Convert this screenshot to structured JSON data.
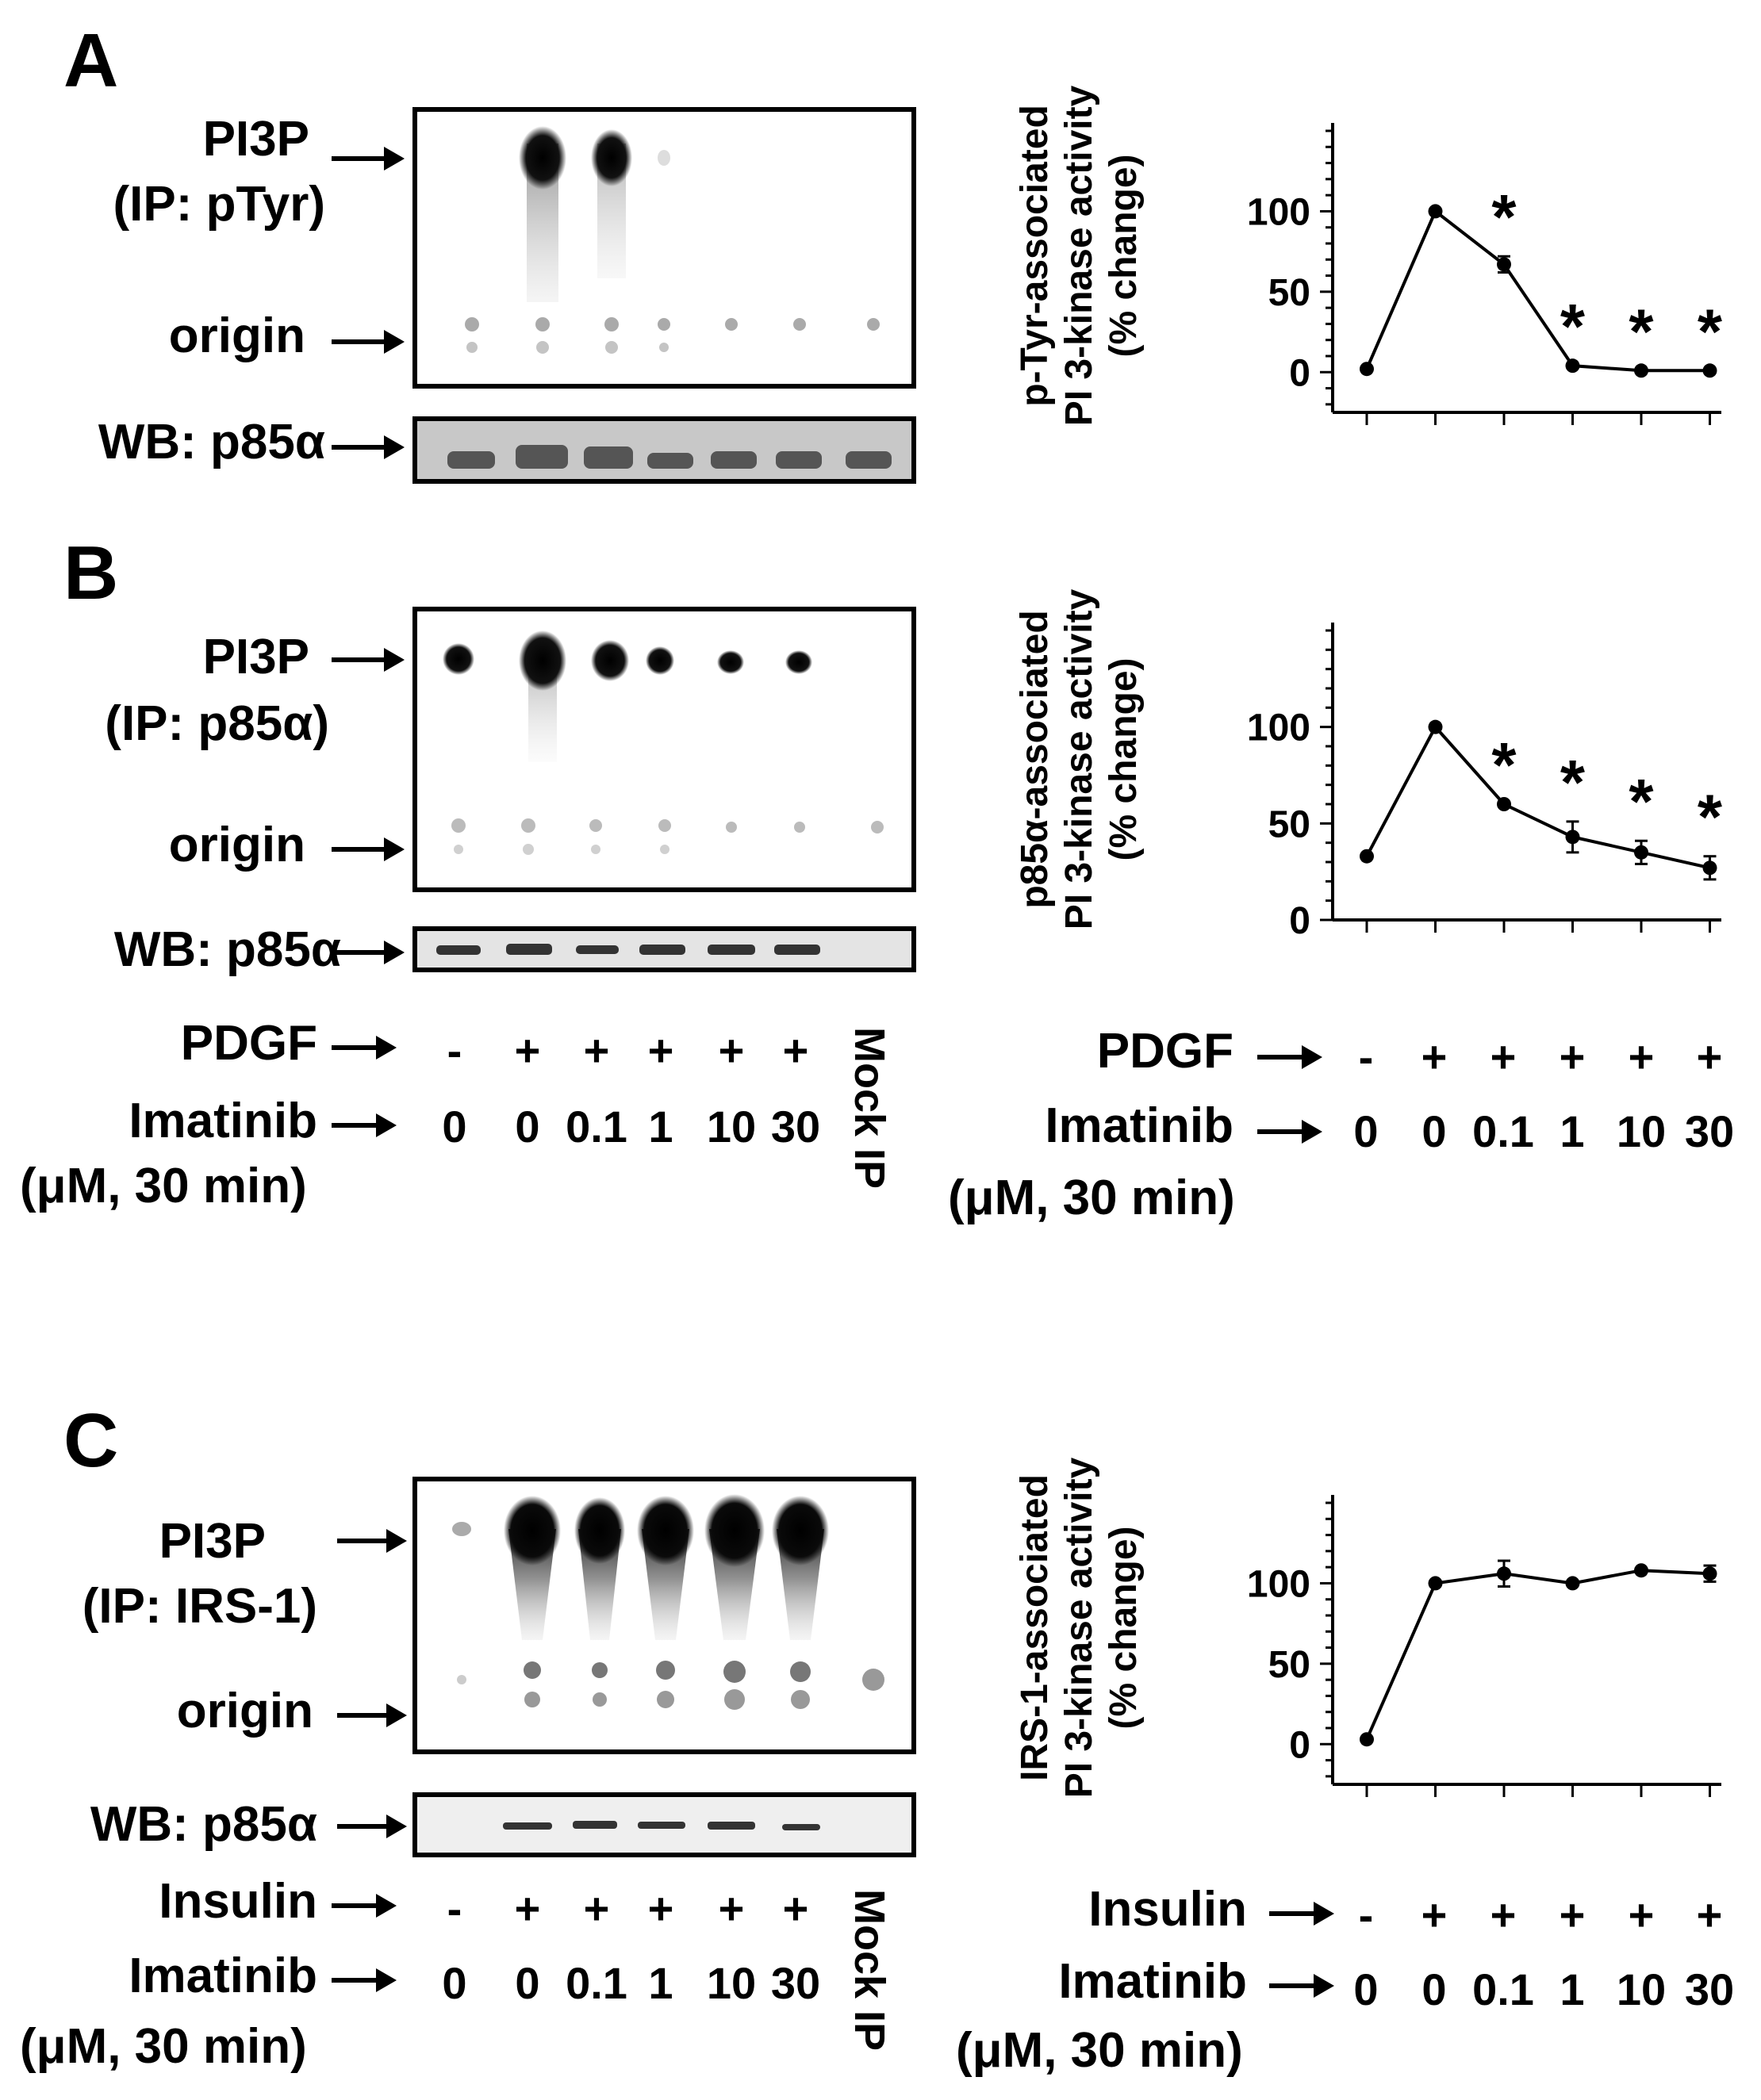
{
  "panels": {
    "A": {
      "letter": "A",
      "blot_label_1": "PI3P",
      "blot_label_2": "(IP: pTyr)",
      "origin_label": "origin",
      "wb_label": "WB: p85α"
    },
    "B": {
      "letter": "B",
      "blot_label_1": "PI3P",
      "blot_label_2": "(IP: p85α)",
      "origin_label": "origin",
      "wb_label": "WB: p85α",
      "stim_label": "PDGF",
      "imatinib_label": "Imatinib",
      "unit_label": "(μM, 30 min)",
      "mock_label": "Mock IP"
    },
    "C": {
      "letter": "C",
      "blot_label_1": "PI3P",
      "blot_label_2": "(IP: IRS-1)",
      "origin_label": "origin",
      "wb_label": "WB: p85α",
      "stim_label": "Insulin",
      "imatinib_label": "Imatinib",
      "unit_label": "(μM, 30 min)",
      "mock_label": "Mock IP"
    }
  },
  "conditions": {
    "stim_signs": [
      "-",
      "+",
      "+",
      "+",
      "+",
      "+"
    ],
    "imatinib_doses": [
      "0",
      "0",
      "0.1",
      "1",
      "10",
      "30"
    ]
  },
  "colors": {
    "ink": "#000000",
    "wb_bg": "#e4e4e4",
    "wb_bg_light": "#efefef"
  },
  "chart_data": [
    {
      "type": "line",
      "panel": "A",
      "ylabel_line1": "p-Tyr-associated",
      "ylabel_line2": "PI 3-kinase activity",
      "ylabel_line3": "(% change)",
      "ylim": [
        -25,
        150
      ],
      "yticks": [
        0,
        50,
        100
      ],
      "categories": [
        "0",
        "0",
        "0.1",
        "1",
        "10",
        "30"
      ],
      "values": [
        2,
        100,
        67,
        4,
        1,
        1
      ],
      "errors": [
        0,
        0,
        5,
        0,
        0,
        0
      ],
      "significance": [
        "",
        "",
        "*",
        "*",
        "*",
        "*"
      ]
    },
    {
      "type": "line",
      "panel": "B",
      "ylabel_line1": "p85α-associated",
      "ylabel_line2": "PI 3-kinase activity",
      "ylabel_line3": "(% change)",
      "ylim": [
        0,
        150
      ],
      "yticks": [
        0,
        50,
        100
      ],
      "categories": [
        "0",
        "0",
        "0.1",
        "1",
        "10",
        "30"
      ],
      "values": [
        33,
        100,
        60,
        43,
        35,
        27
      ],
      "errors": [
        0,
        0,
        0,
        8,
        6,
        6
      ],
      "significance": [
        "",
        "",
        "*",
        "*",
        "*",
        "*"
      ],
      "stim_label": "PDGF",
      "imatinib_label": "Imatinib",
      "unit_label": "(μM, 30 min)"
    },
    {
      "type": "line",
      "panel": "C",
      "ylabel_line1": "IRS-1-associated",
      "ylabel_line2": "PI 3-kinase activity",
      "ylabel_line3": "(% change)",
      "ylim": [
        -25,
        150
      ],
      "yticks": [
        0,
        50,
        100
      ],
      "categories": [
        "0",
        "0",
        "0.1",
        "1",
        "10",
        "30"
      ],
      "values": [
        3,
        100,
        106,
        100,
        108,
        106
      ],
      "errors": [
        0,
        0,
        8,
        0,
        0,
        5
      ],
      "significance": [
        "",
        "",
        "",
        "",
        "",
        ""
      ],
      "stim_label": "Insulin",
      "imatinib_label": "Imatinib",
      "unit_label": "(μM, 30 min)"
    }
  ]
}
